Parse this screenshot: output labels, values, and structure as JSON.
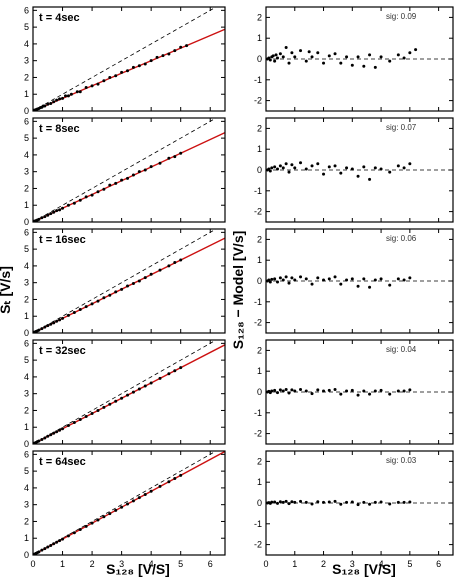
{
  "figure": {
    "left_xlabel": "S₁₂₈ [V/S]",
    "right_xlabel": "S₁₂₈ [V/S]",
    "left_ylabel": "Sₜ [V/s]",
    "right_ylabel": "S₁₂₈ − Model [V/s]"
  },
  "chart_data": [
    {
      "type": "scatter",
      "panel": "left",
      "annotation": "t = 4sec",
      "xlim": [
        0,
        6.5
      ],
      "ylim": [
        0,
        6.2
      ],
      "xticks": [
        0,
        1,
        2,
        3,
        4,
        5,
        6
      ],
      "yticks": [
        0,
        1,
        2,
        3,
        4,
        5,
        6
      ],
      "fit_slope": 0.75,
      "identity_line": true,
      "x": [
        0.05,
        0.1,
        0.15,
        0.2,
        0.25,
        0.3,
        0.35,
        0.4,
        0.5,
        0.6,
        0.7,
        0.8,
        0.9,
        1.0,
        1.1,
        1.2,
        1.3,
        1.5,
        1.6,
        1.8,
        2.0,
        2.2,
        2.4,
        2.6,
        2.8,
        3.0,
        3.2,
        3.4,
        3.6,
        3.8,
        4.0,
        4.2,
        4.4,
        4.6,
        4.8,
        5.0,
        5.2
      ],
      "y": [
        0.05,
        0.08,
        0.12,
        0.15,
        0.2,
        0.22,
        0.3,
        0.3,
        0.4,
        0.45,
        0.55,
        0.65,
        0.72,
        0.75,
        0.9,
        0.9,
        1.0,
        1.15,
        1.15,
        1.4,
        1.5,
        1.6,
        1.8,
        2.0,
        2.1,
        2.3,
        2.4,
        2.6,
        2.7,
        2.8,
        3.0,
        3.2,
        3.3,
        3.4,
        3.6,
        3.8,
        3.9
      ]
    },
    {
      "type": "scatter",
      "panel": "right",
      "annotation": "sig: 0.09",
      "xlim": [
        0,
        6.5
      ],
      "ylim": [
        -2.5,
        2.5
      ],
      "xticks": [
        0,
        1,
        2,
        3,
        4,
        5,
        6
      ],
      "yticks": [
        -2,
        -1,
        0,
        1,
        2
      ],
      "zero_line": true,
      "x": [
        0.05,
        0.1,
        0.15,
        0.2,
        0.25,
        0.3,
        0.35,
        0.4,
        0.5,
        0.6,
        0.7,
        0.8,
        0.9,
        1.0,
        1.2,
        1.4,
        1.5,
        1.6,
        1.8,
        2.0,
        2.2,
        2.4,
        2.6,
        2.8,
        3.0,
        3.2,
        3.4,
        3.6,
        3.8,
        4.0,
        4.3,
        4.6,
        4.8,
        5.0,
        5.2
      ],
      "y": [
        0.0,
        0.05,
        -0.05,
        0.1,
        0.15,
        -0.1,
        0.2,
        0.05,
        0.25,
        0.1,
        0.55,
        -0.2,
        0.3,
        0.1,
        0.4,
        -0.1,
        0.35,
        0.1,
        0.3,
        -0.2,
        0.15,
        0.25,
        -0.2,
        0.1,
        -0.3,
        0.1,
        -0.35,
        0.2,
        -0.4,
        0.1,
        -0.1,
        0.2,
        0.05,
        0.3,
        0.45
      ]
    },
    {
      "type": "scatter",
      "panel": "left",
      "annotation": "t = 8sec",
      "xlim": [
        0,
        6.5
      ],
      "ylim": [
        0,
        6.2
      ],
      "xticks": [
        0,
        1,
        2,
        3,
        4,
        5,
        6
      ],
      "yticks": [
        0,
        1,
        2,
        3,
        4,
        5,
        6
      ],
      "fit_slope": 0.82,
      "identity_line": true,
      "x": [
        0.05,
        0.1,
        0.15,
        0.2,
        0.3,
        0.4,
        0.5,
        0.6,
        0.7,
        0.8,
        0.9,
        1.0,
        1.2,
        1.4,
        1.6,
        1.8,
        2.0,
        2.2,
        2.4,
        2.6,
        2.8,
        3.0,
        3.2,
        3.4,
        3.6,
        3.8,
        4.0,
        4.3,
        4.6,
        4.8,
        5.0
      ],
      "y": [
        0.05,
        0.08,
        0.12,
        0.16,
        0.25,
        0.32,
        0.4,
        0.5,
        0.58,
        0.68,
        0.72,
        0.82,
        1.0,
        1.12,
        1.3,
        1.5,
        1.6,
        1.8,
        1.95,
        2.2,
        2.3,
        2.5,
        2.6,
        2.8,
        3.0,
        3.1,
        3.3,
        3.5,
        3.8,
        3.9,
        4.1
      ]
    },
    {
      "type": "scatter",
      "panel": "right",
      "annotation": "sig: 0.07",
      "xlim": [
        0,
        6.5
      ],
      "ylim": [
        -2.5,
        2.5
      ],
      "xticks": [
        0,
        1,
        2,
        3,
        4,
        5,
        6
      ],
      "yticks": [
        -2,
        -1,
        0,
        1,
        2
      ],
      "zero_line": true,
      "x": [
        0.05,
        0.1,
        0.15,
        0.2,
        0.3,
        0.4,
        0.5,
        0.6,
        0.7,
        0.8,
        0.9,
        1.0,
        1.2,
        1.4,
        1.6,
        1.8,
        2.0,
        2.2,
        2.4,
        2.6,
        2.8,
        3.0,
        3.2,
        3.4,
        3.6,
        3.8,
        4.0,
        4.3,
        4.6,
        4.8,
        5.0
      ],
      "y": [
        0.0,
        0.05,
        -0.05,
        0.1,
        0.15,
        0.05,
        0.2,
        0.1,
        0.3,
        -0.1,
        0.25,
        0.1,
        0.35,
        0.05,
        0.2,
        0.3,
        -0.2,
        0.15,
        0.2,
        -0.15,
        0.1,
        0.05,
        -0.3,
        0.15,
        -0.45,
        0.1,
        0.05,
        -0.1,
        0.2,
        0.1,
        0.3
      ]
    },
    {
      "type": "scatter",
      "panel": "left",
      "annotation": "t = 16sec",
      "xlim": [
        0,
        6.5
      ],
      "ylim": [
        0,
        6.2
      ],
      "xticks": [
        0,
        1,
        2,
        3,
        4,
        5,
        6
      ],
      "yticks": [
        0,
        1,
        2,
        3,
        4,
        5,
        6
      ],
      "fit_slope": 0.87,
      "identity_line": true,
      "x": [
        0.05,
        0.1,
        0.15,
        0.2,
        0.3,
        0.4,
        0.5,
        0.6,
        0.7,
        0.8,
        0.9,
        1.0,
        1.2,
        1.4,
        1.6,
        1.8,
        2.0,
        2.2,
        2.4,
        2.6,
        2.8,
        3.0,
        3.2,
        3.4,
        3.6,
        3.8,
        4.0,
        4.3,
        4.6,
        4.8,
        5.0
      ],
      "y": [
        0.05,
        0.09,
        0.13,
        0.17,
        0.26,
        0.35,
        0.44,
        0.52,
        0.6,
        0.7,
        0.78,
        0.87,
        1.05,
        1.22,
        1.4,
        1.57,
        1.74,
        1.9,
        2.1,
        2.25,
        2.45,
        2.6,
        2.8,
        2.95,
        3.1,
        3.3,
        3.5,
        3.75,
        4.0,
        4.2,
        4.35
      ]
    },
    {
      "type": "scatter",
      "panel": "right",
      "annotation": "sig: 0.06",
      "xlim": [
        0,
        6.5
      ],
      "ylim": [
        -2.5,
        2.5
      ],
      "xticks": [
        0,
        1,
        2,
        3,
        4,
        5,
        6
      ],
      "yticks": [
        -2,
        -1,
        0,
        1,
        2
      ],
      "zero_line": true,
      "x": [
        0.05,
        0.1,
        0.15,
        0.2,
        0.3,
        0.4,
        0.5,
        0.6,
        0.7,
        0.8,
        0.9,
        1.0,
        1.2,
        1.4,
        1.6,
        1.8,
        2.0,
        2.2,
        2.4,
        2.6,
        2.8,
        3.0,
        3.2,
        3.4,
        3.6,
        3.8,
        4.0,
        4.3,
        4.6,
        4.8,
        5.0
      ],
      "y": [
        0.0,
        0.05,
        -0.05,
        0.08,
        0.1,
        -0.05,
        0.15,
        0.05,
        0.2,
        -0.1,
        0.15,
        0.05,
        0.2,
        0.1,
        -0.15,
        0.15,
        0.05,
        0.1,
        0.2,
        -0.15,
        0.05,
        0.1,
        -0.25,
        0.1,
        -0.3,
        0.05,
        0.1,
        -0.2,
        0.1,
        0.05,
        0.15
      ]
    },
    {
      "type": "scatter",
      "panel": "left",
      "annotation": "t = 32sec",
      "xlim": [
        0,
        6.5
      ],
      "ylim": [
        0,
        6.2
      ],
      "xticks": [
        0,
        1,
        2,
        3,
        4,
        5,
        6
      ],
      "yticks": [
        0,
        1,
        2,
        3,
        4,
        5,
        6
      ],
      "fit_slope": 0.91,
      "identity_line": true,
      "x": [
        0.05,
        0.1,
        0.15,
        0.2,
        0.3,
        0.4,
        0.5,
        0.6,
        0.7,
        0.8,
        0.9,
        1.0,
        1.2,
        1.4,
        1.6,
        1.8,
        2.0,
        2.2,
        2.4,
        2.6,
        2.8,
        3.0,
        3.2,
        3.4,
        3.6,
        3.8,
        4.0,
        4.3,
        4.6,
        4.8,
        5.0
      ],
      "y": [
        0.05,
        0.09,
        0.14,
        0.18,
        0.27,
        0.36,
        0.46,
        0.55,
        0.64,
        0.73,
        0.82,
        0.91,
        1.1,
        1.28,
        1.46,
        1.64,
        1.82,
        2.0,
        2.18,
        2.37,
        2.55,
        2.73,
        2.91,
        3.09,
        3.28,
        3.46,
        3.64,
        3.91,
        4.19,
        4.37,
        4.55
      ]
    },
    {
      "type": "scatter",
      "panel": "right",
      "annotation": "sig: 0.04",
      "xlim": [
        0,
        6.5
      ],
      "ylim": [
        -2.5,
        2.5
      ],
      "xticks": [
        0,
        1,
        2,
        3,
        4,
        5,
        6
      ],
      "yticks": [
        -2,
        -1,
        0,
        1,
        2
      ],
      "zero_line": true,
      "x": [
        0.05,
        0.1,
        0.15,
        0.2,
        0.3,
        0.4,
        0.5,
        0.6,
        0.7,
        0.8,
        0.9,
        1.0,
        1.2,
        1.4,
        1.6,
        1.8,
        2.0,
        2.2,
        2.4,
        2.6,
        2.8,
        3.0,
        3.2,
        3.4,
        3.6,
        3.8,
        4.0,
        4.3,
        4.6,
        4.8,
        5.0
      ],
      "y": [
        0.0,
        0.03,
        -0.03,
        0.05,
        0.08,
        -0.03,
        0.1,
        0.05,
        0.12,
        -0.05,
        0.1,
        0.05,
        0.12,
        0.05,
        -0.08,
        0.1,
        0.05,
        0.08,
        0.12,
        -0.1,
        0.05,
        0.08,
        -0.15,
        0.05,
        -0.1,
        0.05,
        0.08,
        -0.1,
        0.05,
        0.05,
        0.1
      ]
    },
    {
      "type": "scatter",
      "panel": "left",
      "annotation": "t = 64sec",
      "xlim": [
        0,
        6.5
      ],
      "ylim": [
        0,
        6.2
      ],
      "xticks": [
        0,
        1,
        2,
        3,
        4,
        5,
        6
      ],
      "yticks": [
        0,
        1,
        2,
        3,
        4,
        5,
        6
      ],
      "fit_slope": 0.95,
      "identity_line": true,
      "x": [
        0.05,
        0.1,
        0.15,
        0.2,
        0.3,
        0.4,
        0.5,
        0.6,
        0.7,
        0.8,
        0.9,
        1.0,
        1.2,
        1.4,
        1.6,
        1.8,
        2.0,
        2.2,
        2.4,
        2.6,
        2.8,
        3.0,
        3.2,
        3.4,
        3.6,
        3.8,
        4.0,
        4.3,
        4.6,
        4.8,
        5.0
      ],
      "y": [
        0.05,
        0.1,
        0.14,
        0.19,
        0.29,
        0.38,
        0.48,
        0.57,
        0.67,
        0.76,
        0.86,
        0.95,
        1.14,
        1.33,
        1.52,
        1.71,
        1.9,
        2.09,
        2.28,
        2.47,
        2.66,
        2.85,
        3.04,
        3.23,
        3.42,
        3.61,
        3.8,
        4.09,
        4.37,
        4.56,
        4.75
      ]
    },
    {
      "type": "scatter",
      "panel": "right",
      "annotation": "sig: 0.03",
      "xlim": [
        0,
        6.5
      ],
      "ylim": [
        -2.5,
        2.5
      ],
      "xticks": [
        0,
        1,
        2,
        3,
        4,
        5,
        6
      ],
      "yticks": [
        -2,
        -1,
        0,
        1,
        2
      ],
      "zero_line": true,
      "x": [
        0.05,
        0.1,
        0.15,
        0.2,
        0.3,
        0.4,
        0.5,
        0.6,
        0.7,
        0.8,
        0.9,
        1.0,
        1.2,
        1.4,
        1.6,
        1.8,
        2.0,
        2.2,
        2.4,
        2.6,
        2.8,
        3.0,
        3.2,
        3.4,
        3.6,
        3.8,
        4.0,
        4.3,
        4.6,
        4.8,
        5.0
      ],
      "y": [
        0.0,
        0.02,
        -0.02,
        0.04,
        0.05,
        -0.02,
        0.06,
        0.03,
        0.08,
        -0.03,
        0.06,
        0.03,
        0.08,
        0.03,
        -0.05,
        0.06,
        0.03,
        0.05,
        0.08,
        -0.06,
        0.03,
        0.05,
        -0.08,
        0.03,
        -0.06,
        0.03,
        0.05,
        -0.05,
        0.03,
        0.03,
        0.05
      ]
    }
  ],
  "colors": {
    "fit_line": "#cc1111",
    "axis": "#000000",
    "marker": "#000000",
    "reference_line": "#000000"
  }
}
